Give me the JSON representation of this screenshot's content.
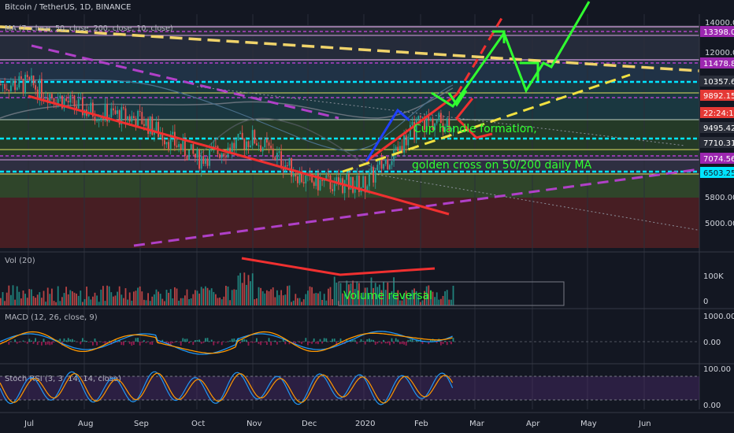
{
  "header": {
    "symbol_line": "Bitcoin / TetherUS, 1D, BINANCE",
    "ma_line": "MA (7, close, 50, close, 200, close, 10, close)"
  },
  "price_scale": {
    "ticks": [
      "14000.00",
      "12000.00",
      "5800.00",
      "5000.00"
    ],
    "badges": [
      {
        "text": "13398.01",
        "color": "#9c27b0"
      },
      {
        "text": "11478.80",
        "color": "#9c27b0"
      },
      {
        "text": "10357.65",
        "color": "#2a2e39"
      },
      {
        "text": "9892.15",
        "color": "#e53935"
      },
      {
        "text": "22:24:19",
        "color": "#e53935"
      },
      {
        "text": "9495.42",
        "color": "#2a2e39"
      },
      {
        "text": "7710.31",
        "color": "#2a2e39"
      },
      {
        "text": "7074.56",
        "color": "#9c27b0"
      },
      {
        "text": "6503.25",
        "color": "#00e5ff"
      }
    ]
  },
  "annotations": {
    "cup_handle": "Cup handle formation,",
    "golden_cross": "golden cross on 50/200 daily MA",
    "volume_reversal": "Volume reversal"
  },
  "time_axis": [
    "Jul",
    "Aug",
    "Sep",
    "Oct",
    "Nov",
    "Dec",
    "2020",
    "Feb",
    "Mar",
    "Apr",
    "May",
    "Jun"
  ],
  "volume_pane": {
    "title": "Vol (20)",
    "ticks": [
      "100K",
      "0"
    ]
  },
  "macd_pane": {
    "title": "MACD (12, 26, close, 9)",
    "ticks": [
      "1000.00",
      "0.00"
    ]
  },
  "rsi_pane": {
    "title": "Stoch RSI (3, 3, 14, 14, close)",
    "ticks": [
      "100.00",
      "0.00"
    ]
  },
  "colors": {
    "background": "#131722",
    "up": "#26a69a",
    "down": "#ef5350",
    "accent_purple": "#9c27b0",
    "accent_cyan": "#00e5ff"
  },
  "chart_data": {
    "type": "line",
    "title": "Bitcoin / TetherUS, 1D, BINANCE",
    "x": [
      "Jul",
      "Aug",
      "Sep",
      "Oct",
      "Nov",
      "Dec",
      "2020",
      "Feb"
    ],
    "series": [
      {
        "values": [
          11500,
          10400,
          10000,
          8300,
          9200,
          7300,
          7200,
          9900
        ]
      }
    ],
    "ylim": [
      4400,
      14500
    ]
  }
}
